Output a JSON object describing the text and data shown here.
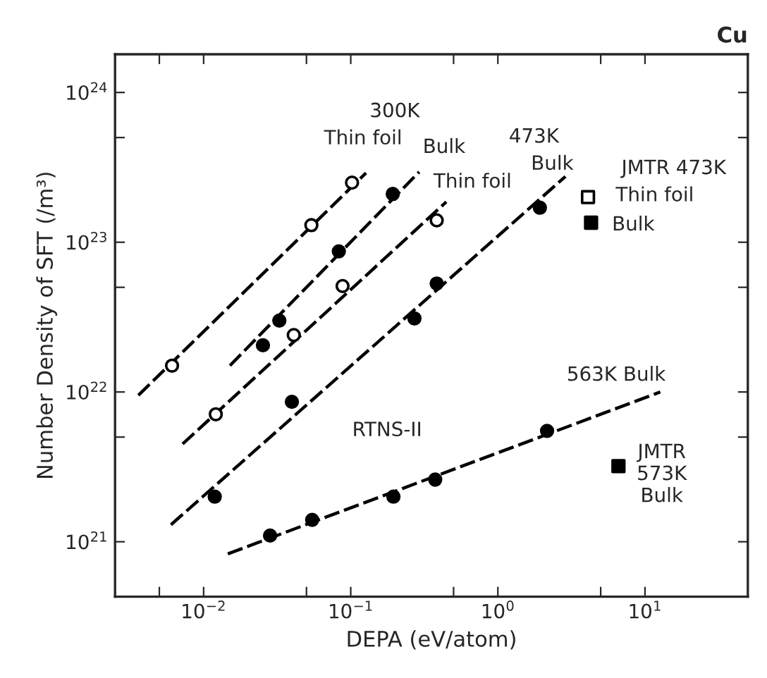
{
  "chart_data": {
    "type": "scatter",
    "title": "Cu",
    "xlabel": "DEPA (eV/atom)",
    "ylabel": "Number Density of SFT (/m³)",
    "log": "xy",
    "xlim": [
      0.0025,
      50
    ],
    "ylim": [
      4.3e+20,
      1.8e+24
    ],
    "xticks": [
      {
        "value": 0.005,
        "label": null
      },
      {
        "value": 0.01,
        "label": "10$^{−2}$"
      },
      {
        "value": 0.05,
        "label": null
      },
      {
        "value": 0.1,
        "label": "10$^{−1}$"
      },
      {
        "value": 0.5,
        "label": null
      },
      {
        "value": 1,
        "label": "10$^{0}$"
      },
      {
        "value": 5,
        "label": null
      },
      {
        "value": 10,
        "label": "10$^{1}$"
      }
    ],
    "yticks": [
      {
        "value": 1e+21,
        "label": "10$^{21}$"
      },
      {
        "value": 5e+21,
        "label": null
      },
      {
        "value": 1e+22,
        "label": "10$^{22}$"
      },
      {
        "value": 5e+22,
        "label": null
      },
      {
        "value": 1e+23,
        "label": "10$^{23}$"
      },
      {
        "value": 5e+23,
        "label": null
      },
      {
        "value": 1e+24,
        "label": "10$^{24}$"
      }
    ],
    "grid": false,
    "legend": false,
    "series": [
      {
        "marker": "circle",
        "color": "#ffffff",
        "x": [
          0.0061,
          0.054,
          0.102
        ],
        "values": [
          1.5e+22,
          1.3e+23,
          2.5e+23
        ]
      },
      {
        "marker": "circle",
        "color": "#000000",
        "x": [
          0.0253,
          0.0327,
          0.083,
          0.193
        ],
        "values": [
          2.05e+22,
          3e+22,
          8.7e+22,
          2.1e+23
        ]
      },
      {
        "marker": "circle",
        "color": "#ffffff",
        "x": [
          0.0121,
          0.041,
          0.088,
          0.384
        ],
        "values": [
          7.1e+21,
          2.4e+22,
          5.1e+22,
          1.4e+23
        ]
      },
      {
        "marker": "circle",
        "color": "#000000",
        "x": [
          0.0119,
          0.0398,
          0.271,
          0.384,
          1.93
        ],
        "values": [
          2e+21,
          8.6e+21,
          3.1e+22,
          5.3e+22,
          1.7e+23
        ]
      },
      {
        "marker": "circle",
        "color": "#000000",
        "x": [
          0.0283,
          0.0547,
          0.195,
          0.375,
          2.16
        ],
        "values": [
          1.1e+21,
          1.4e+21,
          2e+21,
          2.6e+21,
          5.5e+21
        ]
      },
      {
        "marker": "square",
        "color": "#ffffff",
        "x": [
          4.1
        ],
        "values": [
          2e+23
        ]
      },
      {
        "marker": "square",
        "color": "#000000",
        "x": [
          4.3,
          6.6
        ],
        "values": [
          1.35e+23,
          3.2e+21
        ]
      },
      {
        "type": "line",
        "line_style": "dashed",
        "color": "#000000",
        "x": [
          0.0036,
          0.127
        ],
        "values": [
          9.5e+21,
          2.9e+23
        ]
      },
      {
        "type": "line",
        "line_style": "dashed",
        "color": "#000000",
        "x": [
          0.0151,
          0.292
        ],
        "values": [
          1.5e+22,
          2.95e+23
        ]
      },
      {
        "type": "line",
        "line_style": "dashed",
        "color": "#000000",
        "x": [
          0.0072,
          0.446
        ],
        "values": [
          4.5e+21,
          1.86e+23
        ]
      },
      {
        "type": "line",
        "line_style": "dashed",
        "color": "#000000",
        "x": [
          0.006,
          2.88
        ],
        "values": [
          1.3e+21,
          2.75e+23
        ]
      },
      {
        "type": "line",
        "line_style": "dashed",
        "color": "#000000",
        "x": [
          0.0146,
          12.7
        ],
        "values": [
          8.3e+20,
          1e+22
        ]
      }
    ],
    "annotations": [
      "300K",
      "Thin foil",
      "Bulk",
      "473K",
      "Bulk",
      "Thin foil",
      "JMTR 473K",
      "Thin foil",
      "Bulk",
      "563K Bulk",
      "RTNS-II",
      "JMTR\n573K\nBulk"
    ]
  }
}
